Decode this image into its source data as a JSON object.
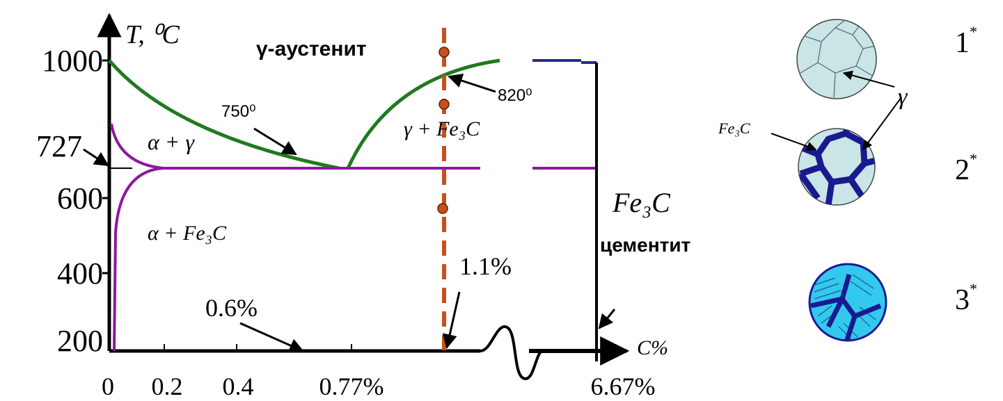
{
  "y_axis": {
    "label": "T, ⁰C",
    "ticks": [
      "1000",
      "727",
      "600",
      "400",
      "200"
    ]
  },
  "x_axis": {
    "label": "C%",
    "ticks": [
      "0",
      "0.2",
      "0.4",
      "0.77%",
      "6.67%"
    ]
  },
  "regions": {
    "austenite": "γ-аустенит",
    "alpha_gamma": "α + γ",
    "gamma_cementite": "γ + Fe₃C",
    "alpha_cementite": "α + Fe₃C"
  },
  "annotations": {
    "t750": "750⁰",
    "t820": "820⁰",
    "c11": "1.1%",
    "c06": "0.6%",
    "cementite_formula": "Fe₃C",
    "cementite_name": "цементит"
  },
  "microstructures": {
    "gamma": "γ",
    "fe3c": "Fe₃C",
    "labels": [
      {
        "number": "1",
        "mark": "*"
      },
      {
        "number": "2",
        "mark": "*"
      },
      {
        "number": "3",
        "mark": "*"
      }
    ]
  }
}
